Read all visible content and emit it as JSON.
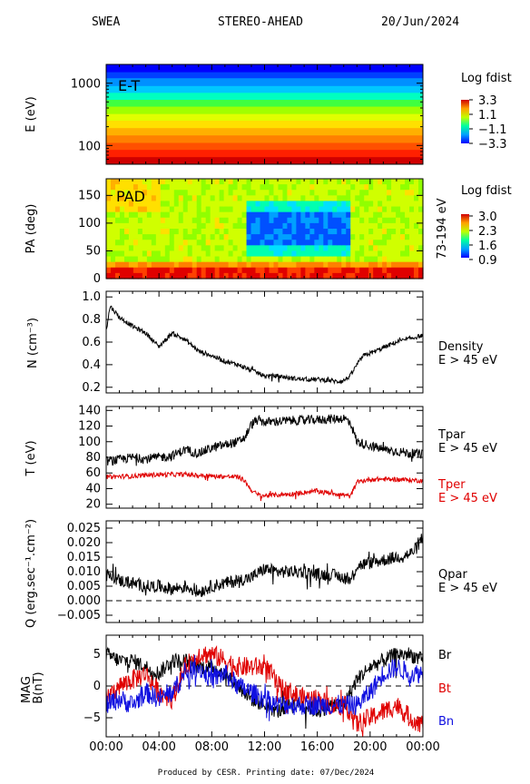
{
  "header": {
    "instrument": "SWEA",
    "spacecraft": "STEREO-AHEAD",
    "date": "20/Jun/2024"
  },
  "footer": {
    "text": "Produced by CESR.   Printing date: 07/Dec/2024"
  },
  "colors": {
    "black": "#000000",
    "red": "#e00000",
    "blue": "#1010e0"
  },
  "chart_data": [
    {
      "type": "heatmap",
      "name": "E-T",
      "panel_label": "E-T",
      "ylabel": "E (eV)",
      "yscale": "log",
      "yticks": [
        {
          "v": 100,
          "label": "100"
        },
        {
          "v": 1000,
          "label": "1000"
        }
      ],
      "ylim": [
        50,
        2000
      ],
      "colorbar": {
        "title": "Log fdist",
        "ticks": [
          "3.3",
          "1.1",
          "−1.1",
          "−3.3"
        ],
        "range": [
          -3.3,
          3.3
        ]
      },
      "energy_bands": [
        2000,
        1500,
        1200,
        900,
        700,
        540,
        420,
        320,
        250,
        190,
        145,
        110,
        85,
        65
      ],
      "band_colors": [
        "#0000ff",
        "#0040ff",
        "#0090ff",
        "#00c8ff",
        "#00ffc0",
        "#40ff40",
        "#a0ff00",
        "#e0ff00",
        "#ffe000",
        "#ffb000",
        "#ff8000",
        "#ff5000",
        "#ff2000",
        "#d00000"
      ]
    },
    {
      "type": "heatmap",
      "name": "PAD",
      "panel_label": "PAD",
      "ylabel": "PA (deg)",
      "ylim": [
        0,
        180
      ],
      "yticks": [
        {
          "v": 0,
          "label": "0"
        },
        {
          "v": 50,
          "label": "50"
        },
        {
          "v": 100,
          "label": "100"
        },
        {
          "v": 150,
          "label": "150"
        }
      ],
      "energy_range_label": "73-194 eV",
      "colorbar": {
        "title": "Log fdist",
        "ticks": [
          "3.0",
          "2.3",
          "1.6",
          "0.9"
        ],
        "range": [
          0.9,
          3.0
        ]
      },
      "depletion_window_hours": [
        10.5,
        18.5
      ],
      "depletion_pa": [
        60,
        120
      ]
    },
    {
      "type": "line",
      "name": "Density",
      "ylabel": "N (cm⁻³)",
      "ylim": [
        0.15,
        1.05
      ],
      "yticks": [
        {
          "v": 0.2,
          "label": "0.2"
        },
        {
          "v": 0.4,
          "label": "0.4"
        },
        {
          "v": 0.6,
          "label": "0.6"
        },
        {
          "v": 0.8,
          "label": "0.8"
        },
        {
          "v": 1.0,
          "label": "1.0"
        }
      ],
      "legend": [
        "Density",
        "E > 45 eV"
      ],
      "series": [
        {
          "name": "Density",
          "color": "#000000",
          "noise": 0.02,
          "x": [
            0,
            0.3,
            1.0,
            2.0,
            3.0,
            4.0,
            5.0,
            6.0,
            7.0,
            8.0,
            9.0,
            10.0,
            11.0,
            12.0,
            13.0,
            14.0,
            15.0,
            16.0,
            17.0,
            17.5,
            18.0,
            18.5,
            19.0,
            19.5,
            20.0,
            21.0,
            22.0,
            23.0,
            24.0
          ],
          "y": [
            0.7,
            0.92,
            0.82,
            0.74,
            0.68,
            0.56,
            0.68,
            0.62,
            0.52,
            0.48,
            0.43,
            0.4,
            0.35,
            0.3,
            0.3,
            0.28,
            0.27,
            0.27,
            0.26,
            0.25,
            0.26,
            0.3,
            0.4,
            0.48,
            0.5,
            0.55,
            0.6,
            0.63,
            0.66
          ]
        }
      ]
    },
    {
      "type": "line",
      "name": "Temperature",
      "ylabel": "T (eV)",
      "ylim": [
        15,
        145
      ],
      "yticks": [
        {
          "v": 20,
          "label": "20"
        },
        {
          "v": 40,
          "label": "40"
        },
        {
          "v": 60,
          "label": "60"
        },
        {
          "v": 80,
          "label": "80"
        },
        {
          "v": 100,
          "label": "100"
        },
        {
          "v": 120,
          "label": "120"
        },
        {
          "v": 140,
          "label": "140"
        }
      ],
      "legend": [
        "Tpar",
        "E > 45 eV",
        "Tper",
        "E > 45 eV"
      ],
      "series": [
        {
          "name": "Tpar",
          "color": "#000000",
          "noise": 6,
          "x": [
            0,
            1,
            2,
            3,
            4,
            5,
            6,
            7,
            8,
            9,
            10,
            10.5,
            11,
            11.5,
            12,
            14,
            16,
            18,
            18.5,
            19,
            20,
            21,
            22,
            23,
            24
          ],
          "y": [
            75,
            77,
            80,
            78,
            80,
            82,
            90,
            85,
            92,
            96,
            100,
            105,
            122,
            128,
            125,
            127,
            128,
            130,
            125,
            100,
            95,
            90,
            88,
            85,
            84
          ]
        },
        {
          "name": "Tper",
          "color": "#e00000",
          "noise": 3,
          "x": [
            0,
            2,
            4,
            6,
            8,
            10,
            10.5,
            11,
            11.5,
            12,
            14,
            16,
            18,
            18.5,
            19,
            20,
            22,
            24
          ],
          "y": [
            55,
            56,
            58,
            58,
            56,
            55,
            50,
            38,
            32,
            31,
            33,
            37,
            32,
            30,
            48,
            52,
            52,
            50
          ]
        }
      ]
    },
    {
      "type": "line",
      "name": "Heat flux",
      "ylabel": "Q (erg.sec⁻¹.cm⁻²)",
      "ylim": [
        -0.0075,
        0.0275
      ],
      "yticks": [
        {
          "v": -0.005,
          "label": "−0.005"
        },
        {
          "v": 0.0,
          "label": "0.000"
        },
        {
          "v": 0.005,
          "label": "0.005"
        },
        {
          "v": 0.01,
          "label": "0.010"
        },
        {
          "v": 0.015,
          "label": "0.015"
        },
        {
          "v": 0.02,
          "label": "0.020"
        },
        {
          "v": 0.025,
          "label": "0.025"
        }
      ],
      "zero_line": true,
      "legend": [
        "Qpar",
        "E > 45 eV"
      ],
      "series": [
        {
          "name": "Qpar",
          "color": "#000000",
          "noise": 0.0022,
          "x": [
            0,
            1,
            2,
            3,
            4,
            5,
            6,
            7,
            8,
            9,
            10,
            11,
            12,
            13,
            14,
            15,
            16,
            17,
            18,
            18.5,
            19,
            20,
            21,
            22,
            23,
            23.5,
            24
          ],
          "y": [
            0.009,
            0.007,
            0.006,
            0.005,
            0.005,
            0.004,
            0.005,
            0.003,
            0.005,
            0.006,
            0.007,
            0.008,
            0.011,
            0.01,
            0.01,
            0.01,
            0.009,
            0.009,
            0.008,
            0.007,
            0.012,
            0.013,
            0.014,
            0.015,
            0.016,
            0.018,
            0.022
          ]
        }
      ]
    },
    {
      "type": "line",
      "name": "MAG",
      "ylabel": "MAG B(nT)",
      "ylim": [
        -8,
        8
      ],
      "yticks": [
        {
          "v": -5,
          "label": "−5"
        },
        {
          "v": 0,
          "label": "0"
        },
        {
          "v": 5,
          "label": "5"
        }
      ],
      "zero_line": true,
      "legend": [
        "Br",
        "Bt",
        "Bn"
      ],
      "xlim": [
        0,
        24
      ],
      "xticks": [
        "00:00",
        "04:00",
        "08:00",
        "12:00",
        "16:00",
        "20:00",
        "00:00"
      ],
      "series": [
        {
          "name": "Br",
          "color": "#000000",
          "noise": 1.2,
          "x": [
            0,
            1,
            2,
            3,
            4,
            5,
            6,
            7,
            8,
            9,
            10,
            11,
            12,
            13,
            14,
            15,
            16,
            17,
            18,
            19,
            20,
            21,
            22,
            23,
            24
          ],
          "y": [
            5,
            4,
            4,
            3,
            2,
            4,
            4,
            3,
            3,
            2,
            0,
            -2,
            -3,
            -4,
            -3,
            -3,
            -4,
            -3,
            -3,
            1,
            3,
            4,
            5,
            5,
            4
          ]
        },
        {
          "name": "Bt",
          "color": "#e00000",
          "noise": 1.6,
          "x": [
            0,
            1,
            2,
            3,
            4,
            5,
            6,
            7,
            8,
            9,
            10,
            11,
            12,
            12.5,
            13,
            14,
            15,
            16,
            17,
            18,
            18.5,
            19,
            20,
            21,
            22,
            23,
            24
          ],
          "y": [
            -2,
            0,
            1,
            2,
            -1,
            -2,
            3,
            5,
            5,
            4,
            3,
            3,
            3,
            2,
            0,
            -1,
            -2,
            -2,
            -3,
            -3,
            -4,
            -6,
            -5,
            -4,
            -3,
            -5,
            -6
          ]
        },
        {
          "name": "Bn",
          "color": "#1010e0",
          "noise": 1.6,
          "x": [
            0,
            1,
            2,
            3,
            4,
            5,
            6,
            7,
            8,
            9,
            10,
            11,
            12,
            13,
            14,
            15,
            16,
            17,
            18,
            19,
            20,
            21,
            22,
            23,
            24
          ],
          "y": [
            -3,
            -2,
            -3,
            -1,
            -2,
            -1,
            2,
            3,
            1,
            2,
            0,
            -1,
            -2,
            -3,
            -3,
            -3,
            -3,
            -3,
            -3,
            -3,
            -1,
            2,
            3,
            2,
            2
          ]
        }
      ]
    }
  ]
}
